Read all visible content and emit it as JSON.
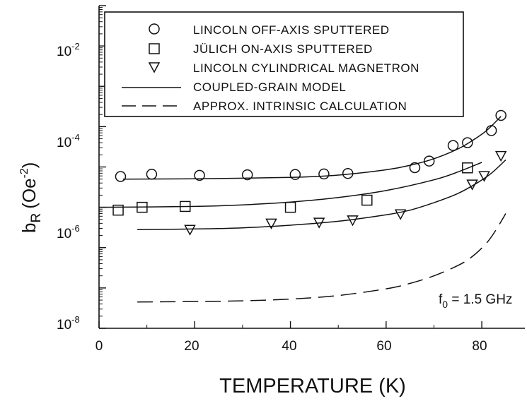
{
  "chart_data": {
    "type": "scatter",
    "xlabel": "TEMPERATURE (K)",
    "ylabel": "b",
    "ylabel_sub": "R",
    "ylabel_unit": "(Oe",
    "ylabel_unit_exp": "-2",
    "ylabel_close": ")",
    "xlim": [
      0,
      89
    ],
    "ylim": [
      1e-08,
      1
    ],
    "yscale": "log",
    "x_ticks": [
      "0",
      "20",
      "40",
      "60",
      "80"
    ],
    "y_ticks": [
      {
        "base": "10",
        "exp": "-2"
      },
      {
        "base": "10",
        "exp": "-4"
      },
      {
        "base": "10",
        "exp": "-6"
      },
      {
        "base": "10",
        "exp": "-8"
      }
    ],
    "annotation": {
      "prefix": "f",
      "sub": "0",
      "suffix": " = 1.5 GHz"
    },
    "legend_position": "top",
    "series": [
      {
        "name": "LINCOLN OFF-AXIS SPUTTERED",
        "marker": "circle",
        "points": [
          [
            4.5,
            5.8e-05
          ],
          [
            11,
            6.6e-05
          ],
          [
            21,
            6.2e-05
          ],
          [
            31,
            6.4e-05
          ],
          [
            41,
            6.5e-05
          ],
          [
            47,
            6.7e-05
          ],
          [
            52,
            6.9e-05
          ],
          [
            66,
            9.6e-05
          ],
          [
            69,
            0.00014
          ],
          [
            74,
            0.00034
          ],
          [
            77,
            0.0004
          ],
          [
            82,
            0.0008
          ],
          [
            84,
            0.0019
          ]
        ]
      },
      {
        "name": "JÜLICH ON-AXIS SPUTTERED",
        "marker": "square",
        "points": [
          [
            4,
            8.5e-06
          ],
          [
            9,
            1e-05
          ],
          [
            18,
            1.05e-05
          ],
          [
            40,
            1e-05
          ],
          [
            56,
            1.5e-05
          ],
          [
            77,
            9.5e-05
          ]
        ]
      },
      {
        "name": "LINCOLN CYLINDRICAL MAGNETRON",
        "marker": "triangle",
        "points": [
          [
            19,
            2.8e-06
          ],
          [
            36,
            4e-06
          ],
          [
            46,
            4.2e-06
          ],
          [
            53,
            4.8e-06
          ],
          [
            63,
            6.8e-06
          ],
          [
            78,
            3.7e-05
          ],
          [
            80.5,
            6e-05
          ],
          [
            84,
            0.00019
          ]
        ]
      },
      {
        "name": "COUPLED-GRAIN MODEL",
        "style": "solid",
        "curves": [
          [
            [
              5,
              5e-05
            ],
            [
              20,
              5.1e-05
            ],
            [
              40,
              5.5e-05
            ],
            [
              50,
              6.3e-05
            ],
            [
              60,
              8.5e-05
            ],
            [
              65,
              0.00011
            ],
            [
              70,
              0.00016
            ],
            [
              75,
              0.00028
            ],
            [
              78,
              0.00045
            ],
            [
              81,
              0.0008
            ],
            [
              84,
              0.0018
            ]
          ],
          [
            [
              0,
              1e-05
            ],
            [
              20,
              1.05e-05
            ],
            [
              30,
              1.15e-05
            ],
            [
              40,
              1.35e-05
            ],
            [
              50,
              1.75e-05
            ],
            [
              60,
              2.6e-05
            ],
            [
              70,
              4.8e-05
            ],
            [
              75,
              7.5e-05
            ],
            [
              80,
              0.00013
            ]
          ],
          [
            [
              8,
              2.8e-06
            ],
            [
              20,
              2.9e-06
            ],
            [
              30,
              3.1e-06
            ],
            [
              40,
              3.6e-06
            ],
            [
              50,
              4.5e-06
            ],
            [
              60,
              6.5e-06
            ],
            [
              65,
              8.5e-06
            ],
            [
              70,
              1.3e-05
            ],
            [
              75,
              2.2e-05
            ],
            [
              79,
              4e-05
            ],
            [
              82,
              7e-05
            ],
            [
              85,
              0.00015
            ]
          ]
        ]
      },
      {
        "name": "APPROX. INTRINSIC CALCULATION",
        "style": "dashed",
        "curves": [
          [
            [
              8,
              4.5e-08
            ],
            [
              20,
              4.6e-08
            ],
            [
              30,
              4.8e-08
            ],
            [
              40,
              5.3e-08
            ],
            [
              50,
              6.5e-08
            ],
            [
              60,
              9.5e-08
            ],
            [
              65,
              1.3e-07
            ],
            [
              70,
              2e-07
            ],
            [
              75,
              3.6e-07
            ],
            [
              78,
              6e-07
            ],
            [
              81,
              1.3e-06
            ],
            [
              83,
              2.8e-06
            ],
            [
              85,
              7e-06
            ]
          ]
        ]
      }
    ]
  }
}
